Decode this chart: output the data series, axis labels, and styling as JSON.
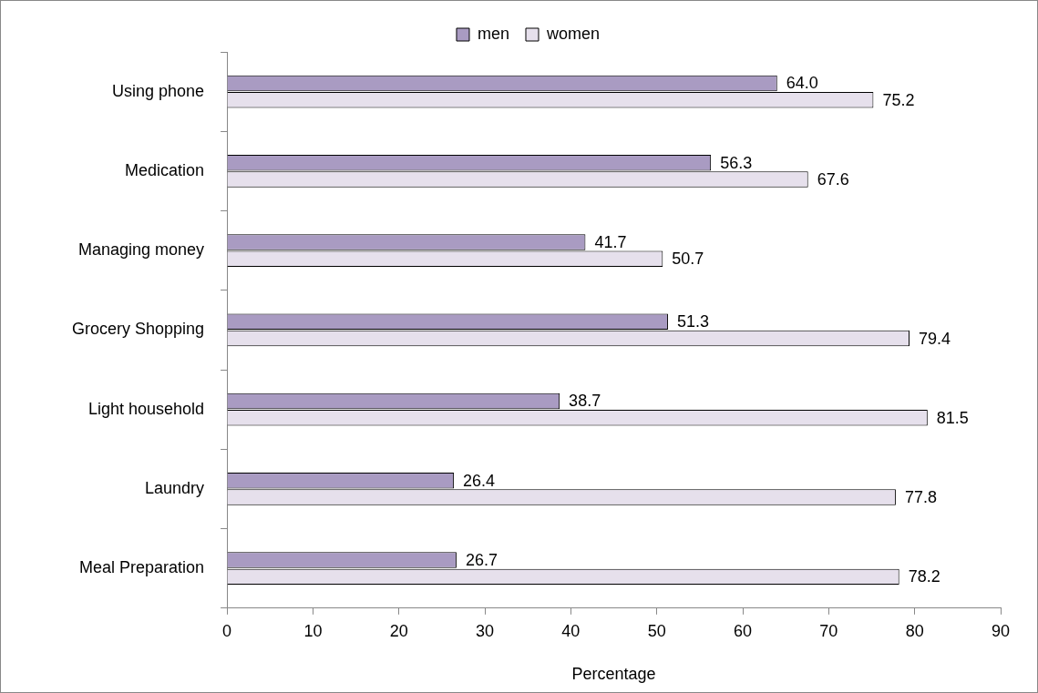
{
  "chart_data": {
    "type": "bar",
    "orientation": "horizontal",
    "xlabel": "Percentage",
    "legend": "top",
    "categories": [
      "Using phone",
      "Medication",
      "Managing money",
      "Grocery Shopping",
      "Light household",
      "Laundry",
      "Meal Preparation"
    ],
    "series": [
      {
        "name": "men",
        "color": "#a99bc2",
        "values": [
          64.0,
          56.3,
          41.7,
          51.3,
          38.7,
          26.4,
          26.7
        ],
        "value_labels": [
          "64.0",
          "56.3",
          "41.7",
          "51.3",
          "38.7",
          "26.4",
          "26.7"
        ]
      },
      {
        "name": "women",
        "color": "#e6e0ec",
        "values": [
          75.2,
          67.6,
          50.7,
          79.4,
          81.5,
          77.8,
          78.2
        ],
        "value_labels": [
          "75.2",
          "67.6",
          "50.7",
          "79.4",
          "81.5",
          "77.8",
          "78.2"
        ]
      }
    ],
    "xlim": [
      0,
      90
    ],
    "xticks": [
      0,
      10,
      20,
      30,
      40,
      50,
      60,
      70,
      80,
      90
    ]
  }
}
